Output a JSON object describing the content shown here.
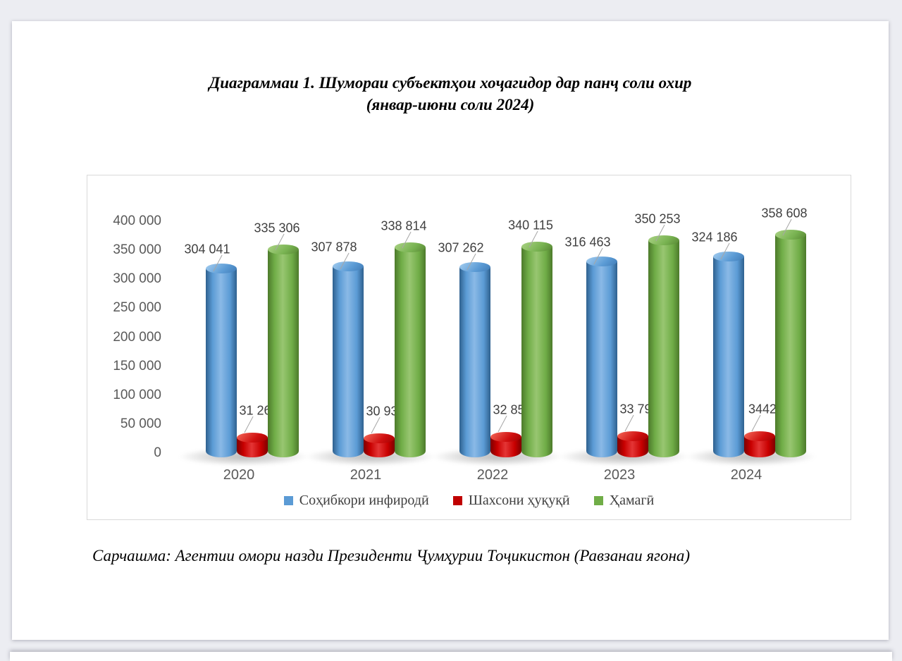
{
  "page": {
    "title_line1": "Диаграммаи 1. Шумораи субъектҳои хоҷагидор дар панҷ соли охир",
    "title_line2": "(январ-июни соли 2024)",
    "source": "Сарчашма: Агентии омори назди Президенти Ҷумҳурии Тоҷикистон (Равзанаи ягона)"
  },
  "chart_data": {
    "type": "bar",
    "style": "3d-cylinder",
    "title": "Диаграммаи 1. Шумораи субъектҳои хоҷагидор дар панҷ соли охир (январ-июни соли 2024)",
    "categories": [
      "2020",
      "2021",
      "2022",
      "2023",
      "2024"
    ],
    "series": [
      {
        "name": "Соҳибкори инфиродӣ",
        "color": "#5B9BD5",
        "values": [
          304041,
          307878,
          307262,
          316463,
          324186
        ],
        "labels": [
          "304 041",
          "307 878",
          "307 262",
          "316 463",
          "324 186"
        ]
      },
      {
        "name": "Шахсони ҳуқуқӣ",
        "color": "#C00000",
        "values": [
          31265,
          30936,
          32853,
          33790,
          34422
        ],
        "labels": [
          "31 265",
          "30 936",
          "32 853",
          "33 790",
          "34422"
        ]
      },
      {
        "name": "Ҳамагӣ",
        "color": "#70AD47",
        "values": [
          335306,
          338814,
          340115,
          350253,
          358608
        ],
        "labels": [
          "335 306",
          "338 814",
          "340 115",
          "350 253",
          "358 608"
        ]
      }
    ],
    "ylim": [
      0,
      400000
    ],
    "ytick_step": 50000,
    "yticks": [
      "400 000",
      "350 000",
      "300 000",
      "250 000",
      "200 000",
      "150 000",
      "100 000",
      "50 000",
      "0"
    ],
    "xlabel": "",
    "ylabel": "",
    "grid": false,
    "legend_position": "bottom",
    "data_label_color": "#404040",
    "axis_label_color": "#595959"
  }
}
